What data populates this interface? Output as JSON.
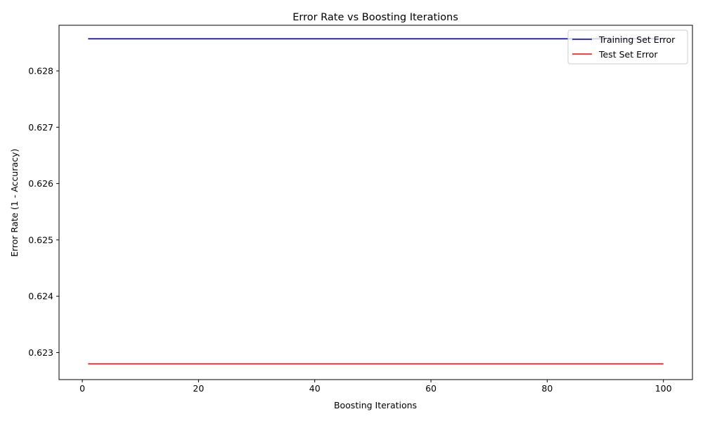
{
  "chart_data": {
    "type": "line",
    "title": "Error Rate vs Boosting Iterations",
    "xlabel": "Boosting Iterations",
    "ylabel": "Error Rate (1 - Accuracy)",
    "xlim": [
      -4.0,
      105.0
    ],
    "ylim": [
      0.62252,
      0.62881
    ],
    "x_ticks": [
      0,
      20,
      40,
      60,
      80,
      100
    ],
    "y_ticks": [
      0.623,
      0.624,
      0.625,
      0.626,
      0.627,
      0.628
    ],
    "y_tick_labels": [
      "0.623",
      "0.624",
      "0.625",
      "0.626",
      "0.627",
      "0.628"
    ],
    "grid": false,
    "legend_position": "top-right",
    "series": [
      {
        "name": "Training Set Error",
        "color": "#0000aa",
        "x": [
          1,
          100
        ],
        "y": [
          0.62857,
          0.62857
        ]
      },
      {
        "name": "Test Set Error",
        "color": "#ff0000",
        "x": [
          1,
          100
        ],
        "y": [
          0.6228,
          0.6228
        ]
      }
    ]
  }
}
